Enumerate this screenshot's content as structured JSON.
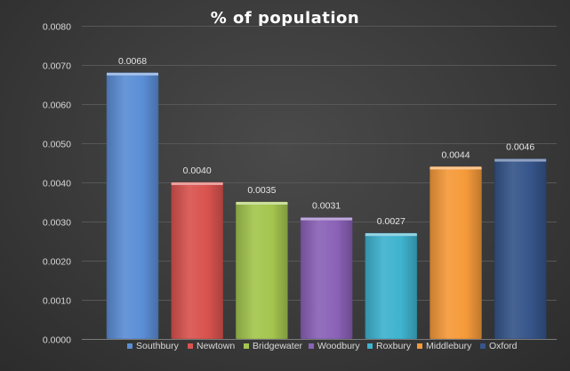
{
  "chart_data": {
    "type": "bar",
    "title": "% of population",
    "xlabel": "",
    "ylabel": "",
    "categories": [
      "Southbury",
      "Newtown",
      "Bridgewater",
      "Woodbury",
      "Roxbury",
      "Middlebury",
      "Oxford"
    ],
    "values": [
      0.0068,
      0.004,
      0.0035,
      0.0031,
      0.0027,
      0.0044,
      0.0046
    ],
    "data_labels": [
      "0.0068",
      "0.0040",
      "0.0035",
      "0.0031",
      "0.0027",
      "0.0044",
      "0.0046"
    ],
    "colors": [
      "#5b8ed6",
      "#d9534f",
      "#a4c64f",
      "#8b62b8",
      "#3fb3cf",
      "#f59a3a",
      "#36558a"
    ],
    "ylim": [
      0,
      0.008
    ],
    "yticks": [
      0,
      0.001,
      0.002,
      0.003,
      0.004,
      0.005,
      0.006,
      0.007,
      0.008
    ],
    "ytick_labels": [
      "0.0000",
      "0.0010",
      "0.0020",
      "0.0030",
      "0.0040",
      "0.0050",
      "0.0060",
      "0.0070",
      "0.0080"
    ],
    "grid": true,
    "legend": "bottom",
    "background": "#3a3a3a"
  }
}
